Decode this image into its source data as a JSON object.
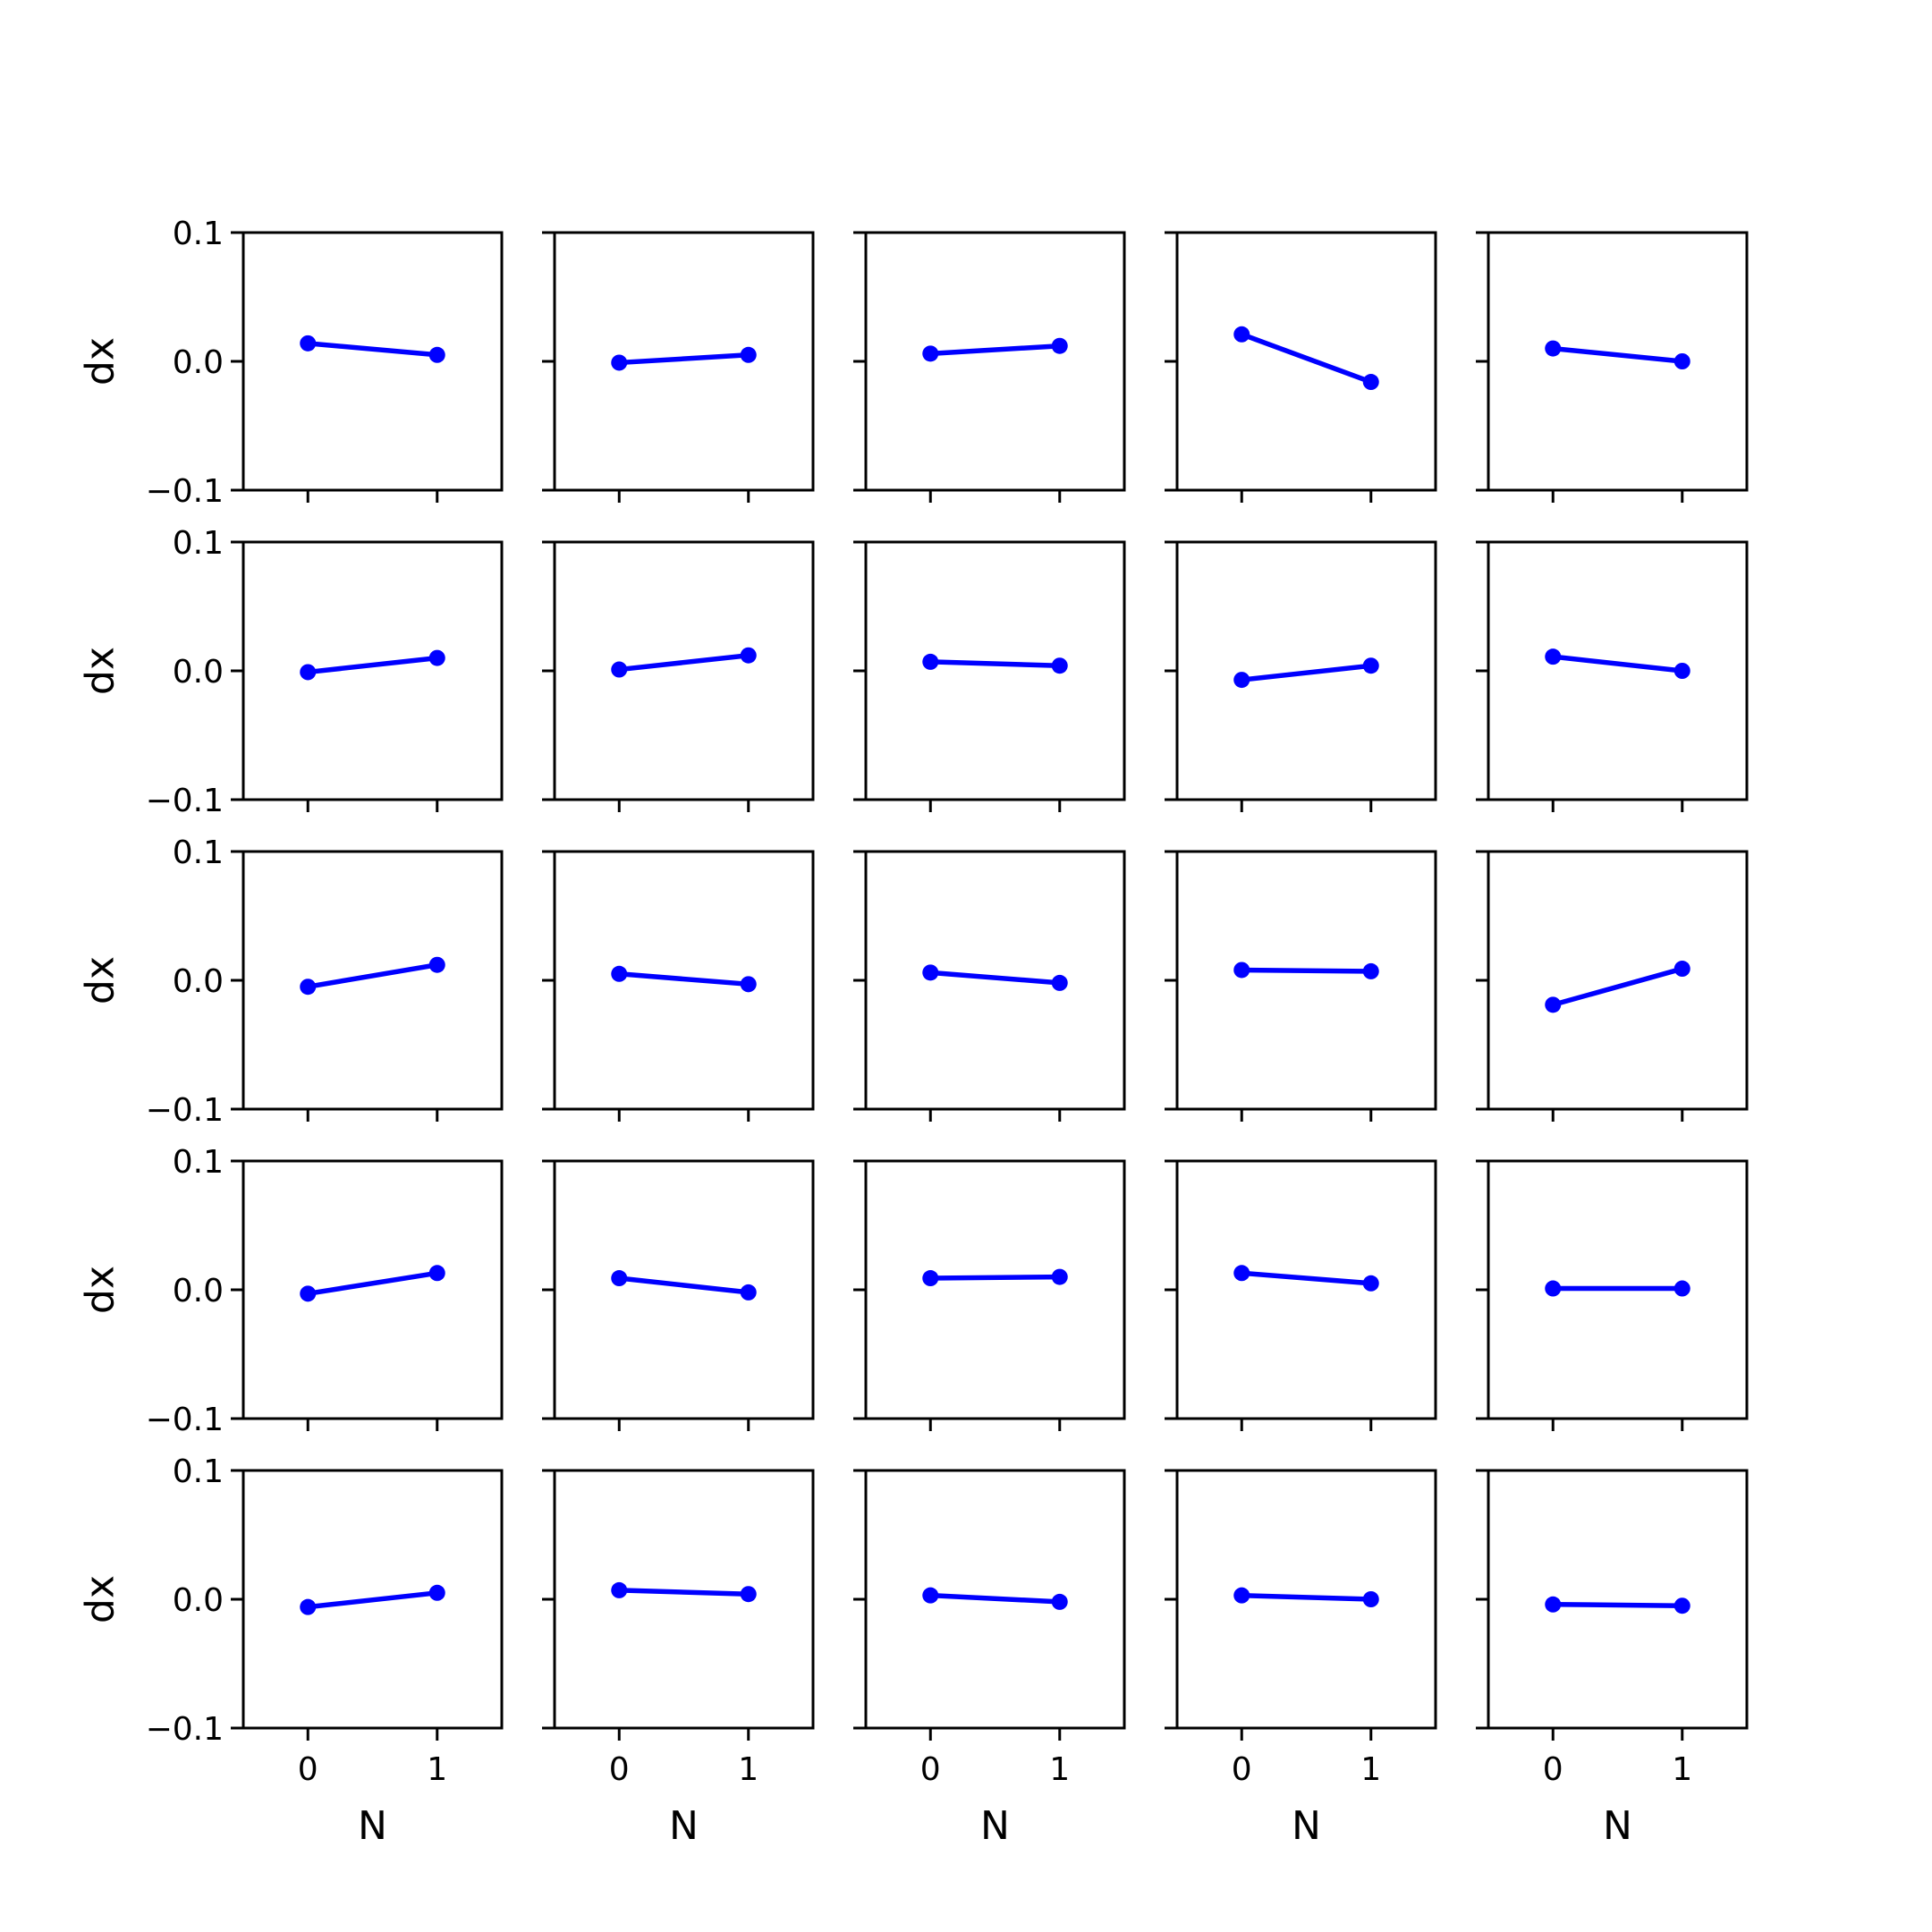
{
  "chart_data": {
    "type": "line",
    "layout": "grid-5x5",
    "xlabel": "N",
    "ylabel": "dx",
    "xlim": [
      -0.5,
      1.5
    ],
    "ylim": [
      -0.1,
      0.1
    ],
    "xticks": [
      0,
      1
    ],
    "xtick_labels": [
      "0",
      "1"
    ],
    "yticks": [
      0.1,
      0.0,
      -0.1
    ],
    "ytick_labels": [
      "0.1",
      "0.0",
      "−0.1"
    ],
    "grid": false,
    "series_color": "#0000ff",
    "panels": [
      [
        [
          0.014,
          0.005
        ],
        [
          -0.001,
          0.005
        ],
        [
          0.006,
          0.012
        ],
        [
          0.021,
          -0.016
        ],
        [
          0.01,
          0.0
        ]
      ],
      [
        [
          -0.001,
          0.01
        ],
        [
          0.001,
          0.012
        ],
        [
          0.007,
          0.004
        ],
        [
          -0.007,
          0.004
        ],
        [
          0.011,
          0.0
        ]
      ],
      [
        [
          -0.005,
          0.012
        ],
        [
          0.005,
          -0.003
        ],
        [
          0.006,
          -0.002
        ],
        [
          0.008,
          0.007
        ],
        [
          -0.019,
          0.009
        ]
      ],
      [
        [
          -0.003,
          0.013
        ],
        [
          0.009,
          -0.002
        ],
        [
          0.009,
          0.01
        ],
        [
          0.013,
          0.005
        ],
        [
          0.001,
          0.001
        ]
      ],
      [
        [
          -0.006,
          0.005
        ],
        [
          0.007,
          0.004
        ],
        [
          0.003,
          -0.002
        ],
        [
          0.003,
          0.0
        ],
        [
          -0.004,
          -0.005
        ]
      ]
    ]
  }
}
